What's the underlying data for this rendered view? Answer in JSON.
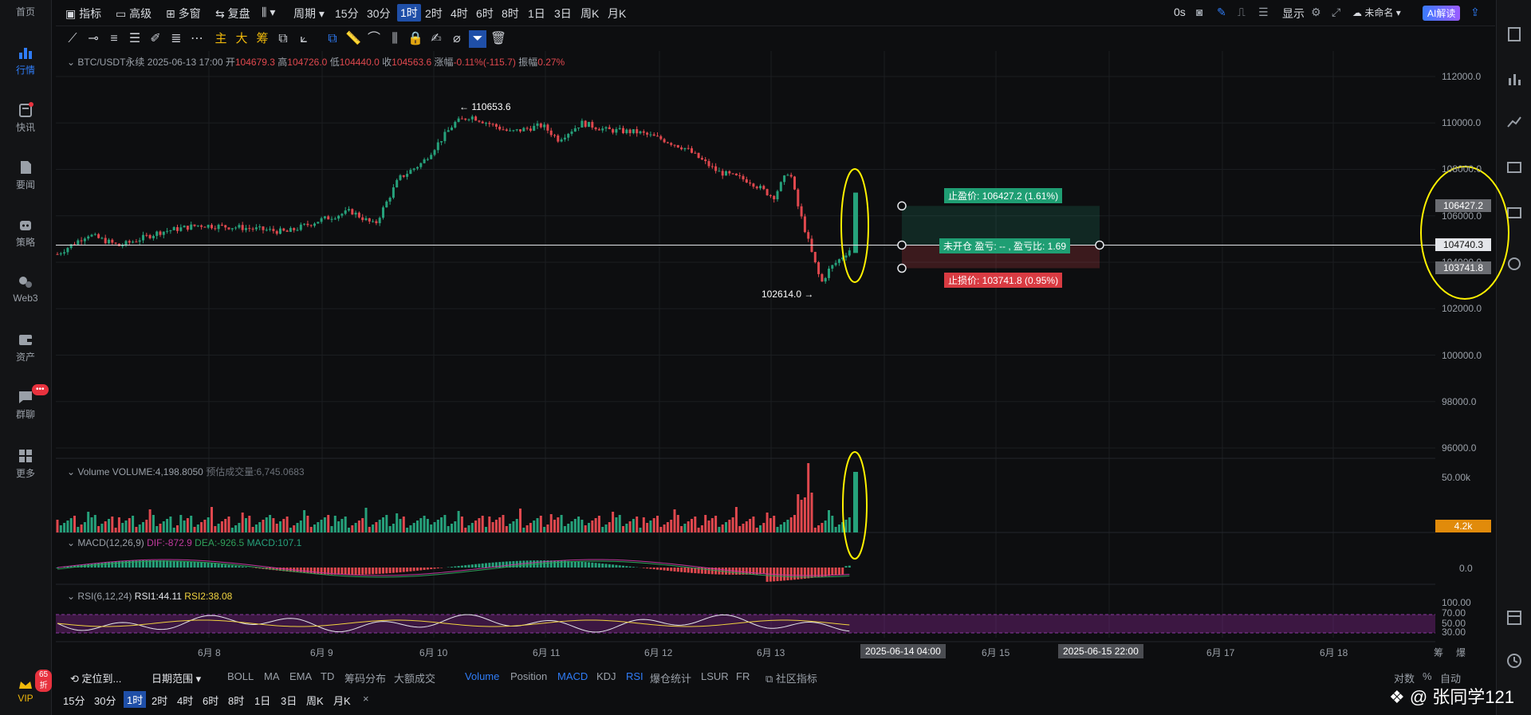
{
  "sidebar": {
    "items": [
      {
        "label": "首页",
        "icon": "home-icon"
      },
      {
        "label": "行情",
        "icon": "chart-icon",
        "active": true
      },
      {
        "label": "快讯",
        "icon": "news-flash-icon"
      },
      {
        "label": "要闻",
        "icon": "article-icon"
      },
      {
        "label": "策略",
        "icon": "robot-icon"
      },
      {
        "label": "Web3",
        "icon": "web3-icon"
      },
      {
        "label": "资产",
        "icon": "wallet-icon"
      },
      {
        "label": "群聊",
        "icon": "chat-icon",
        "badge": "•••"
      },
      {
        "label": "更多",
        "icon": "grid-icon"
      }
    ],
    "vip_label": "VIP",
    "vip_badge": "65折"
  },
  "toolbar": {
    "indicator": "指标",
    "advanced": "高级",
    "multi": "多窗",
    "replay": "复盘",
    "period": "周期",
    "intervals": [
      "15分",
      "30分",
      "1时",
      "2时",
      "4时",
      "6时",
      "8时",
      "1日",
      "3日",
      "周K",
      "月K"
    ],
    "active_interval": "1时",
    "countdown": "0s",
    "display": "显示",
    "unnamed": "未命名",
    "ai": "AI解读"
  },
  "legend": {
    "symbol": "BTC/USDT永续",
    "datetime": "2025-06-13 17:00",
    "open_k": "开",
    "open": "104679.3",
    "high_k": "高",
    "high": "104726.0",
    "low_k": "低",
    "low": "104440.0",
    "close_k": "收",
    "close": "104563.6",
    "change_k": "涨幅",
    "change": "-0.11%(-115.7)",
    "amp_k": "振幅",
    "amp": "0.27%"
  },
  "volume_legend": {
    "name": "Volume",
    "value": "VOLUME:4,198.8050",
    "est_k": "预估成交量:",
    "est": "6,745.0683"
  },
  "macd_legend": {
    "name": "MACD(12,26,9)",
    "dif": "DIF:-872.9",
    "dea": "DEA:-926.5",
    "macd": "MACD:107.1"
  },
  "rsi_legend": {
    "name": "RSI(6,12,24)",
    "rsi1": "RSI1:44.11",
    "rsi2": "RSI2:38.08"
  },
  "annotations": {
    "high": "← 110653.6",
    "low": "102614.0 →"
  },
  "position_tool": {
    "tp": "止盈价: 106427.2 (1.61%)",
    "open": "未开仓 盈亏: -- , 盈亏比: 1.69",
    "sl": "止损价: 103741.8 (0.95%)"
  },
  "price_boxes": {
    "tp": "106427.2",
    "entry": "104740.3",
    "sl": "103741.8",
    "vol": "4.2k"
  },
  "y_axis": [
    "112000.0",
    "110000.0",
    "108000.0",
    "106000.0",
    "104000.0",
    "102000.0",
    "100000.0",
    "98000.0",
    "96000.0"
  ],
  "vol_axis": [
    "50.00k"
  ],
  "macd_axis": [
    "0.0"
  ],
  "rsi_axis": [
    "100.00",
    "70.00",
    "50.00",
    "30.00"
  ],
  "x_axis": [
    "6月 8",
    "6月 9",
    "6月 10",
    "6月 11",
    "6月 12",
    "6月 13",
    "6月 15",
    "6月 17",
    "6月 18"
  ],
  "x_highlight": [
    "2025-06-14 04:00",
    "2025-06-15 22:00"
  ],
  "x_right": [
    "筹",
    "爆"
  ],
  "bottom": {
    "locate": "定位到...",
    "date_range": "日期范围",
    "indicators": [
      "BOLL",
      "MA",
      "EMA",
      "TD",
      "筹码分布",
      "大额成交"
    ],
    "sub_indicators": [
      "Volume",
      "Position",
      "MACD",
      "KDJ",
      "RSI",
      "爆仓统计",
      "LSUR",
      "FR"
    ],
    "community": "社区指标",
    "right": [
      "对数",
      "%",
      "自动"
    ],
    "intervals": [
      "15分",
      "30分",
      "1时",
      "2时",
      "4时",
      "6时",
      "8时",
      "1日",
      "3日",
      "周K",
      "月K"
    ],
    "close": "×"
  },
  "watermark": "@ 张同学121",
  "colors": {
    "up": "#26a17b",
    "down": "#e0484e",
    "accent": "#2f7cf6",
    "highlight": "#fff200"
  }
}
